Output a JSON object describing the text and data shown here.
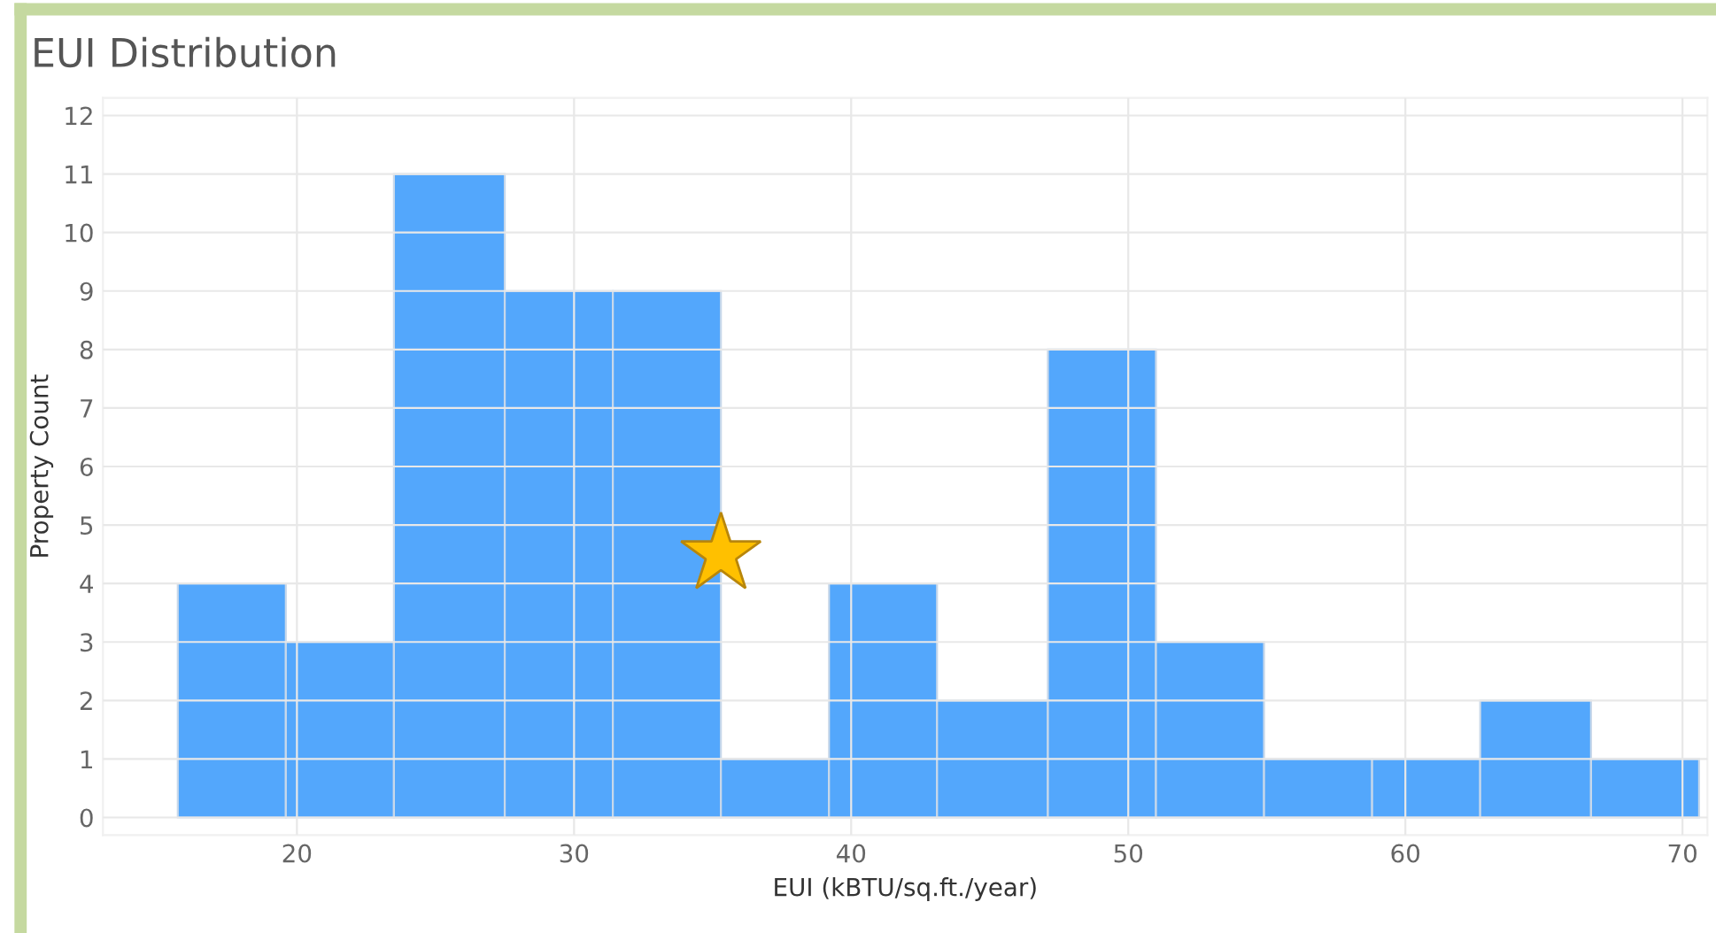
{
  "chart_data": {
    "type": "histogram",
    "title": "EUI Distribution",
    "xlabel": "EUI (kBTU/sq.ft./year)",
    "ylabel": "Property Count",
    "bins": [
      15.7,
      19.6,
      23.5,
      27.5,
      31.4,
      35.3,
      39.2,
      43.1,
      47.1,
      51.0,
      54.9,
      58.8,
      62.7,
      66.7,
      70.6
    ],
    "values": [
      4,
      3,
      11,
      9,
      9,
      1,
      4,
      2,
      8,
      3,
      1,
      1,
      2,
      1
    ],
    "color": "#53a7fc",
    "xlim": [
      13.0,
      70.9
    ],
    "xticks": [
      20,
      30,
      40,
      50,
      60,
      70
    ],
    "ylim": [
      -0.3,
      12.3
    ],
    "yticks": [
      0,
      1,
      2,
      3,
      4,
      5,
      6,
      7,
      8,
      9,
      10,
      11,
      12
    ],
    "grid": true
  }
}
